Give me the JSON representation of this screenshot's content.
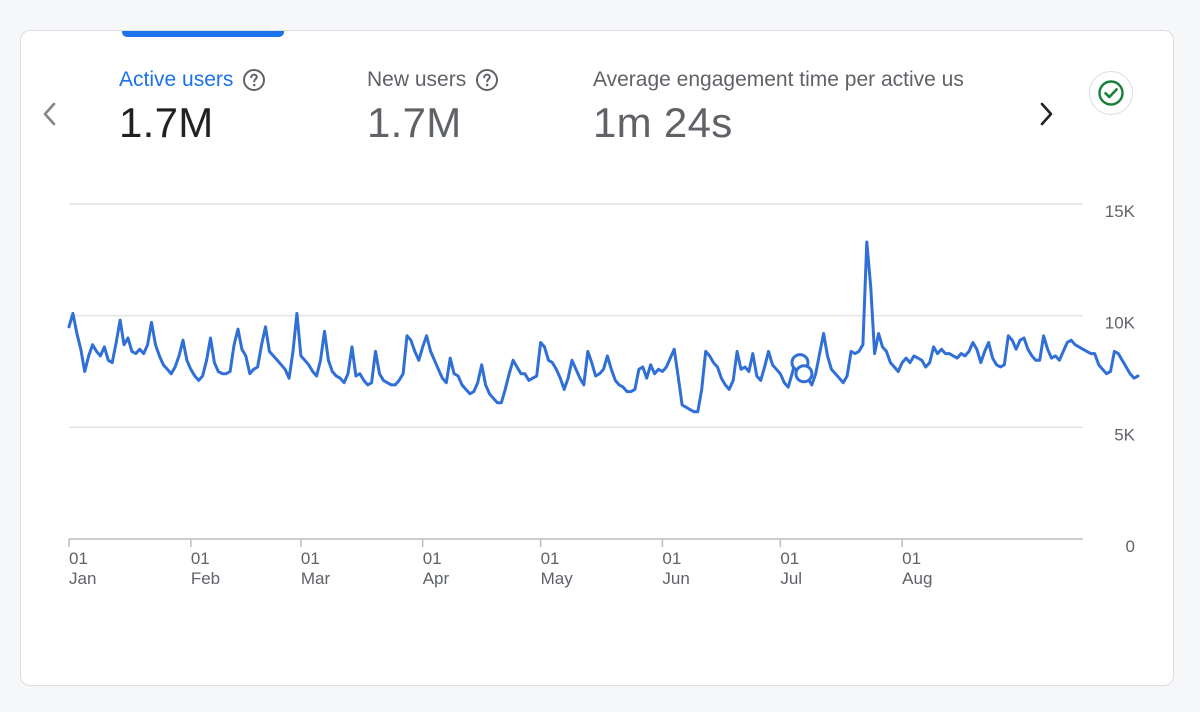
{
  "metrics": [
    {
      "label": "Active users",
      "value": "1.7M",
      "active": true
    },
    {
      "label": "New users",
      "value": "1.7M",
      "active": false
    },
    {
      "label": "Average engagement time per active us",
      "value": "1m 24s",
      "active": false
    }
  ],
  "colors": {
    "accent": "#1a73e8",
    "line": "#2f6fd6",
    "grid": "#e3e3e3",
    "check": "#188038"
  },
  "icons": {
    "prev": "chevron-left-icon",
    "next": "chevron-right-icon",
    "help": "help-circle-icon",
    "status": "check-circle-icon"
  },
  "chart_data": {
    "type": "line",
    "series_name": "Active users",
    "ylim": [
      0,
      15000
    ],
    "yticks": [
      {
        "value": 15000,
        "label": "15K"
      },
      {
        "value": 10000,
        "label": "10K"
      },
      {
        "value": 5000,
        "label": "5K"
      },
      {
        "value": 0,
        "label": "0"
      }
    ],
    "xticks": [
      {
        "day": 0,
        "top": "01",
        "bottom": "Jan"
      },
      {
        "day": 31,
        "top": "01",
        "bottom": "Feb"
      },
      {
        "day": 59,
        "top": "01",
        "bottom": "Mar"
      },
      {
        "day": 90,
        "top": "01",
        "bottom": "Apr"
      },
      {
        "day": 120,
        "top": "01",
        "bottom": "May"
      },
      {
        "day": 151,
        "top": "01",
        "bottom": "Jun"
      },
      {
        "day": 181,
        "top": "01",
        "bottom": "Jul"
      },
      {
        "day": 212,
        "top": "01",
        "bottom": "Aug"
      }
    ],
    "x_start_day": 0,
    "highlight_days": [
      186,
      187
    ],
    "values": [
      9500,
      10100,
      9200,
      8500,
      7500,
      8200,
      8700,
      8400,
      8200,
      8600,
      8000,
      7900,
      8800,
      9800,
      8700,
      9000,
      8400,
      8300,
      8500,
      8300,
      8700,
      9700,
      8700,
      8200,
      7800,
      7600,
      7400,
      7700,
      8200,
      8900,
      8000,
      7600,
      7300,
      7100,
      7300,
      8000,
      9000,
      7900,
      7500,
      7400,
      7400,
      7500,
      8700,
      9400,
      8500,
      8200,
      7400,
      7600,
      7700,
      8700,
      9500,
      8400,
      8200,
      8000,
      7800,
      7600,
      7200,
      8400,
      10100,
      8200,
      8000,
      7800,
      7500,
      7300,
      8000,
      9300,
      8000,
      7500,
      7300,
      7200,
      7000,
      7400,
      8600,
      7300,
      7400,
      7100,
      6900,
      7000,
      8400,
      7400,
      7100,
      7000,
      6900,
      6900,
      7100,
      7400,
      9100,
      8900,
      8400,
      8000,
      8600,
      9100,
      8400,
      8000,
      7600,
      7200,
      7000,
      8100,
      7400,
      7300,
      6900,
      6700,
      6500,
      6600,
      7000,
      7800,
      6900,
      6500,
      6300,
      6100,
      6100,
      6700,
      7400,
      8000,
      7700,
      7400,
      7400,
      7100,
      7200,
      7300,
      8800,
      8600,
      8000,
      7900,
      7600,
      7200,
      6700,
      7200,
      8000,
      7600,
      7200,
      6900,
      8400,
      7900,
      7300,
      7400,
      7600,
      8200,
      7600,
      7100,
      6900,
      6800,
      6600,
      6600,
      6700,
      7600,
      7700,
      7200,
      7800,
      7400,
      7600,
      7500,
      7700,
      8100,
      8500,
      7300,
      6000,
      5900,
      5800,
      5700,
      5700,
      6700,
      8400,
      8200,
      7900,
      7700,
      7200,
      6900,
      6700,
      7100,
      8400,
      7600,
      7700,
      7500,
      8300,
      7300,
      7100,
      7700,
      8400,
      7800,
      7600,
      7400,
      7000,
      6800,
      7400,
      8100,
      7900,
      7400,
      7200,
      6900,
      7400,
      8300,
      9200,
      8200,
      7600,
      7400,
      7200,
      7000,
      7300,
      8400,
      8300,
      8400,
      8700,
      13300,
      11300,
      8300,
      9200,
      8600,
      8400,
      7900,
      7700,
      7500,
      7900,
      8100,
      7900,
      8200,
      8100,
      8000,
      7700,
      7900,
      8600,
      8300,
      8500,
      8300,
      8300,
      8200,
      8100,
      8300,
      8200,
      8400,
      8800,
      8500,
      7900,
      8400,
      8800,
      8100,
      7800,
      7700,
      7800,
      9100,
      8900,
      8500,
      8900,
      9000,
      8500,
      8200,
      8000,
      8000,
      9100,
      8500,
      8100,
      8200,
      8000,
      8400,
      8800,
      8900,
      8700,
      8600,
      8500,
      8400,
      8300,
      8300,
      7800,
      7600,
      7400,
      7500,
      8400,
      8300,
      8000,
      7700,
      7400,
      7200,
      7300
    ]
  }
}
